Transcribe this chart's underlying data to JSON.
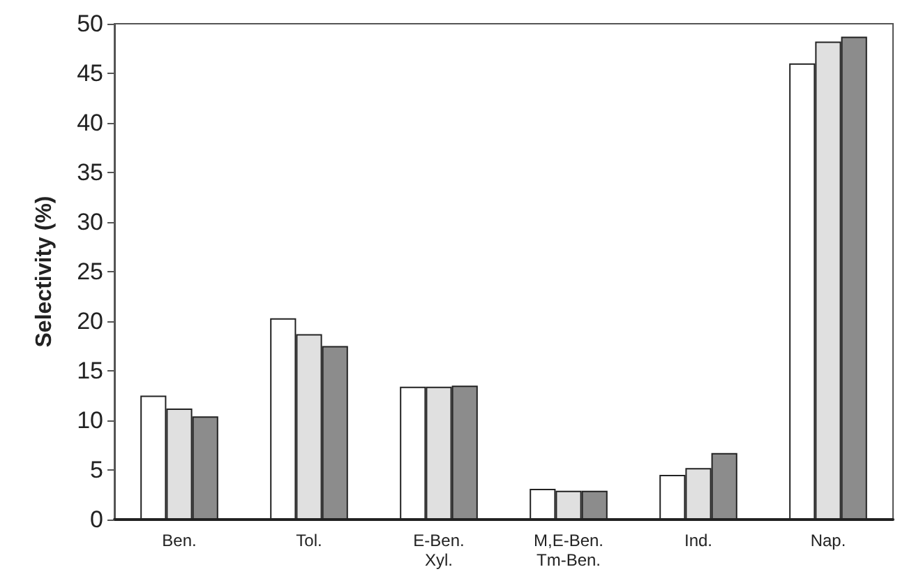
{
  "chart_data": {
    "type": "bar",
    "ylabel": "Selectivity (%)",
    "categories": [
      "Ben.",
      "Tol.",
      "E-Ben.\nXyl.",
      "M,E-Ben.\nTm-Ben.",
      "Ind.",
      "Nap."
    ],
    "series": [
      {
        "color": "#ffffff",
        "values": [
          12.5,
          20.3,
          13.4,
          3.1,
          4.5,
          46.0
        ]
      },
      {
        "color": "#e0e0e0",
        "values": [
          11.2,
          18.7,
          13.4,
          2.9,
          5.2,
          48.2
        ]
      },
      {
        "color": "#8c8c8c",
        "values": [
          10.4,
          17.5,
          13.5,
          2.9,
          6.7,
          48.7
        ]
      }
    ],
    "ylim": [
      0,
      50
    ],
    "yticks": [
      0,
      5,
      10,
      15,
      20,
      25,
      30,
      35,
      40,
      45,
      50
    ],
    "grid": false
  }
}
